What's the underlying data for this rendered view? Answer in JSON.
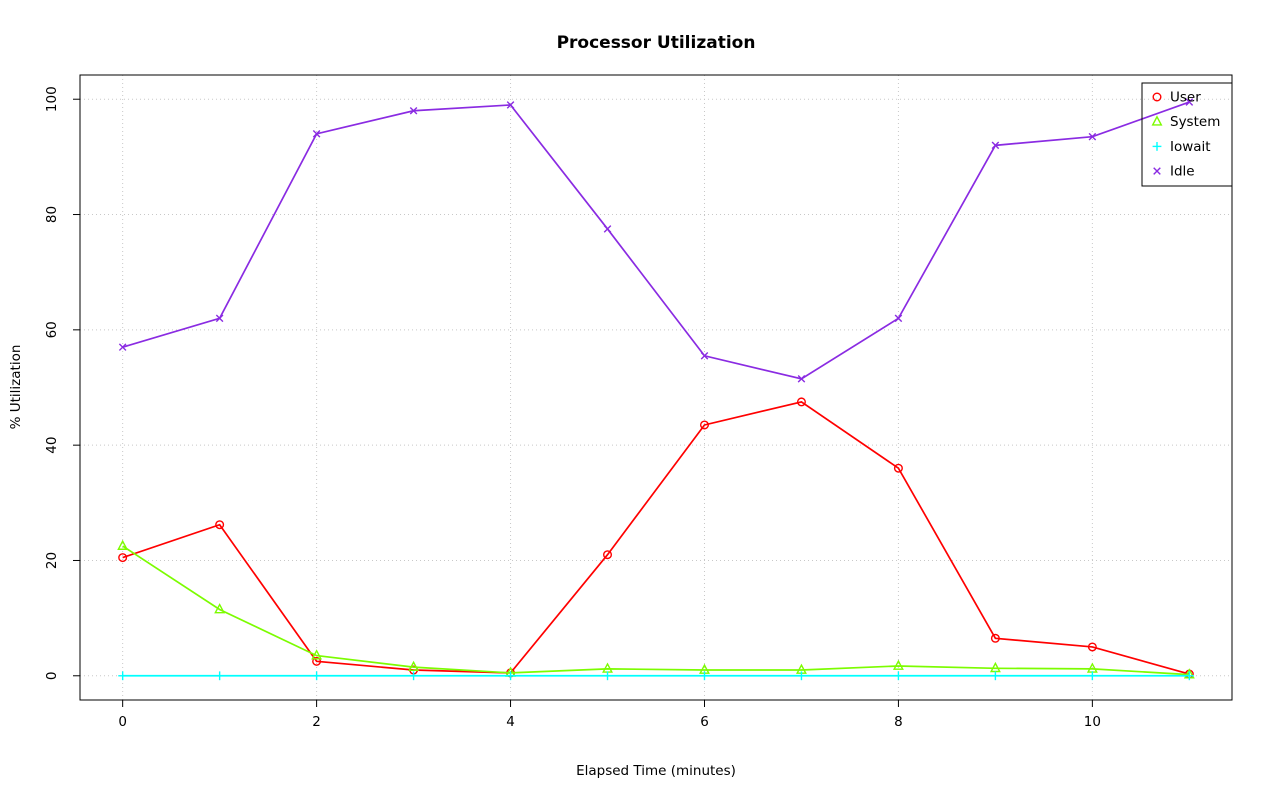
{
  "chart_data": {
    "type": "line",
    "title": "Processor Utilization",
    "xlabel": "Elapsed Time (minutes)",
    "ylabel": "% Utilization",
    "x": [
      0,
      1,
      2,
      3,
      4,
      5,
      6,
      7,
      8,
      9,
      10,
      11
    ],
    "series": [
      {
        "name": "User",
        "marker": "circle",
        "color": "#ff0000",
        "values": [
          20.5,
          26.2,
          2.5,
          1.0,
          0.5,
          21.0,
          43.5,
          47.5,
          36.0,
          6.5,
          5.0,
          0.3
        ]
      },
      {
        "name": "System",
        "marker": "triangle",
        "color": "#7cfc00",
        "values": [
          22.5,
          11.5,
          3.5,
          1.5,
          0.5,
          1.2,
          1.0,
          1.0,
          1.7,
          1.3,
          1.2,
          0.2
        ]
      },
      {
        "name": "Iowait",
        "marker": "plus",
        "color": "#00ffff",
        "values": [
          0,
          0,
          0,
          0,
          0,
          0,
          0,
          0,
          0,
          0,
          0,
          0
        ]
      },
      {
        "name": "Idle",
        "marker": "x",
        "color": "#8a2be2",
        "values": [
          57.0,
          62.0,
          94.0,
          98.0,
          99.0,
          77.5,
          55.5,
          51.5,
          62.0,
          92.0,
          93.5,
          99.5
        ]
      }
    ],
    "x_ticks": [
      0,
      2,
      4,
      6,
      8,
      10
    ],
    "y_ticks": [
      0,
      20,
      40,
      60,
      80,
      100
    ],
    "xlim": [
      -0.44,
      11.44
    ],
    "ylim": [
      -4.2,
      104.2
    ],
    "grid": true,
    "legend_position": "top-right",
    "legend_labels": [
      "User",
      "System",
      "Iowait",
      "Idle"
    ],
    "grid_color": "#c8c8c8",
    "axis_color": "#000000"
  }
}
